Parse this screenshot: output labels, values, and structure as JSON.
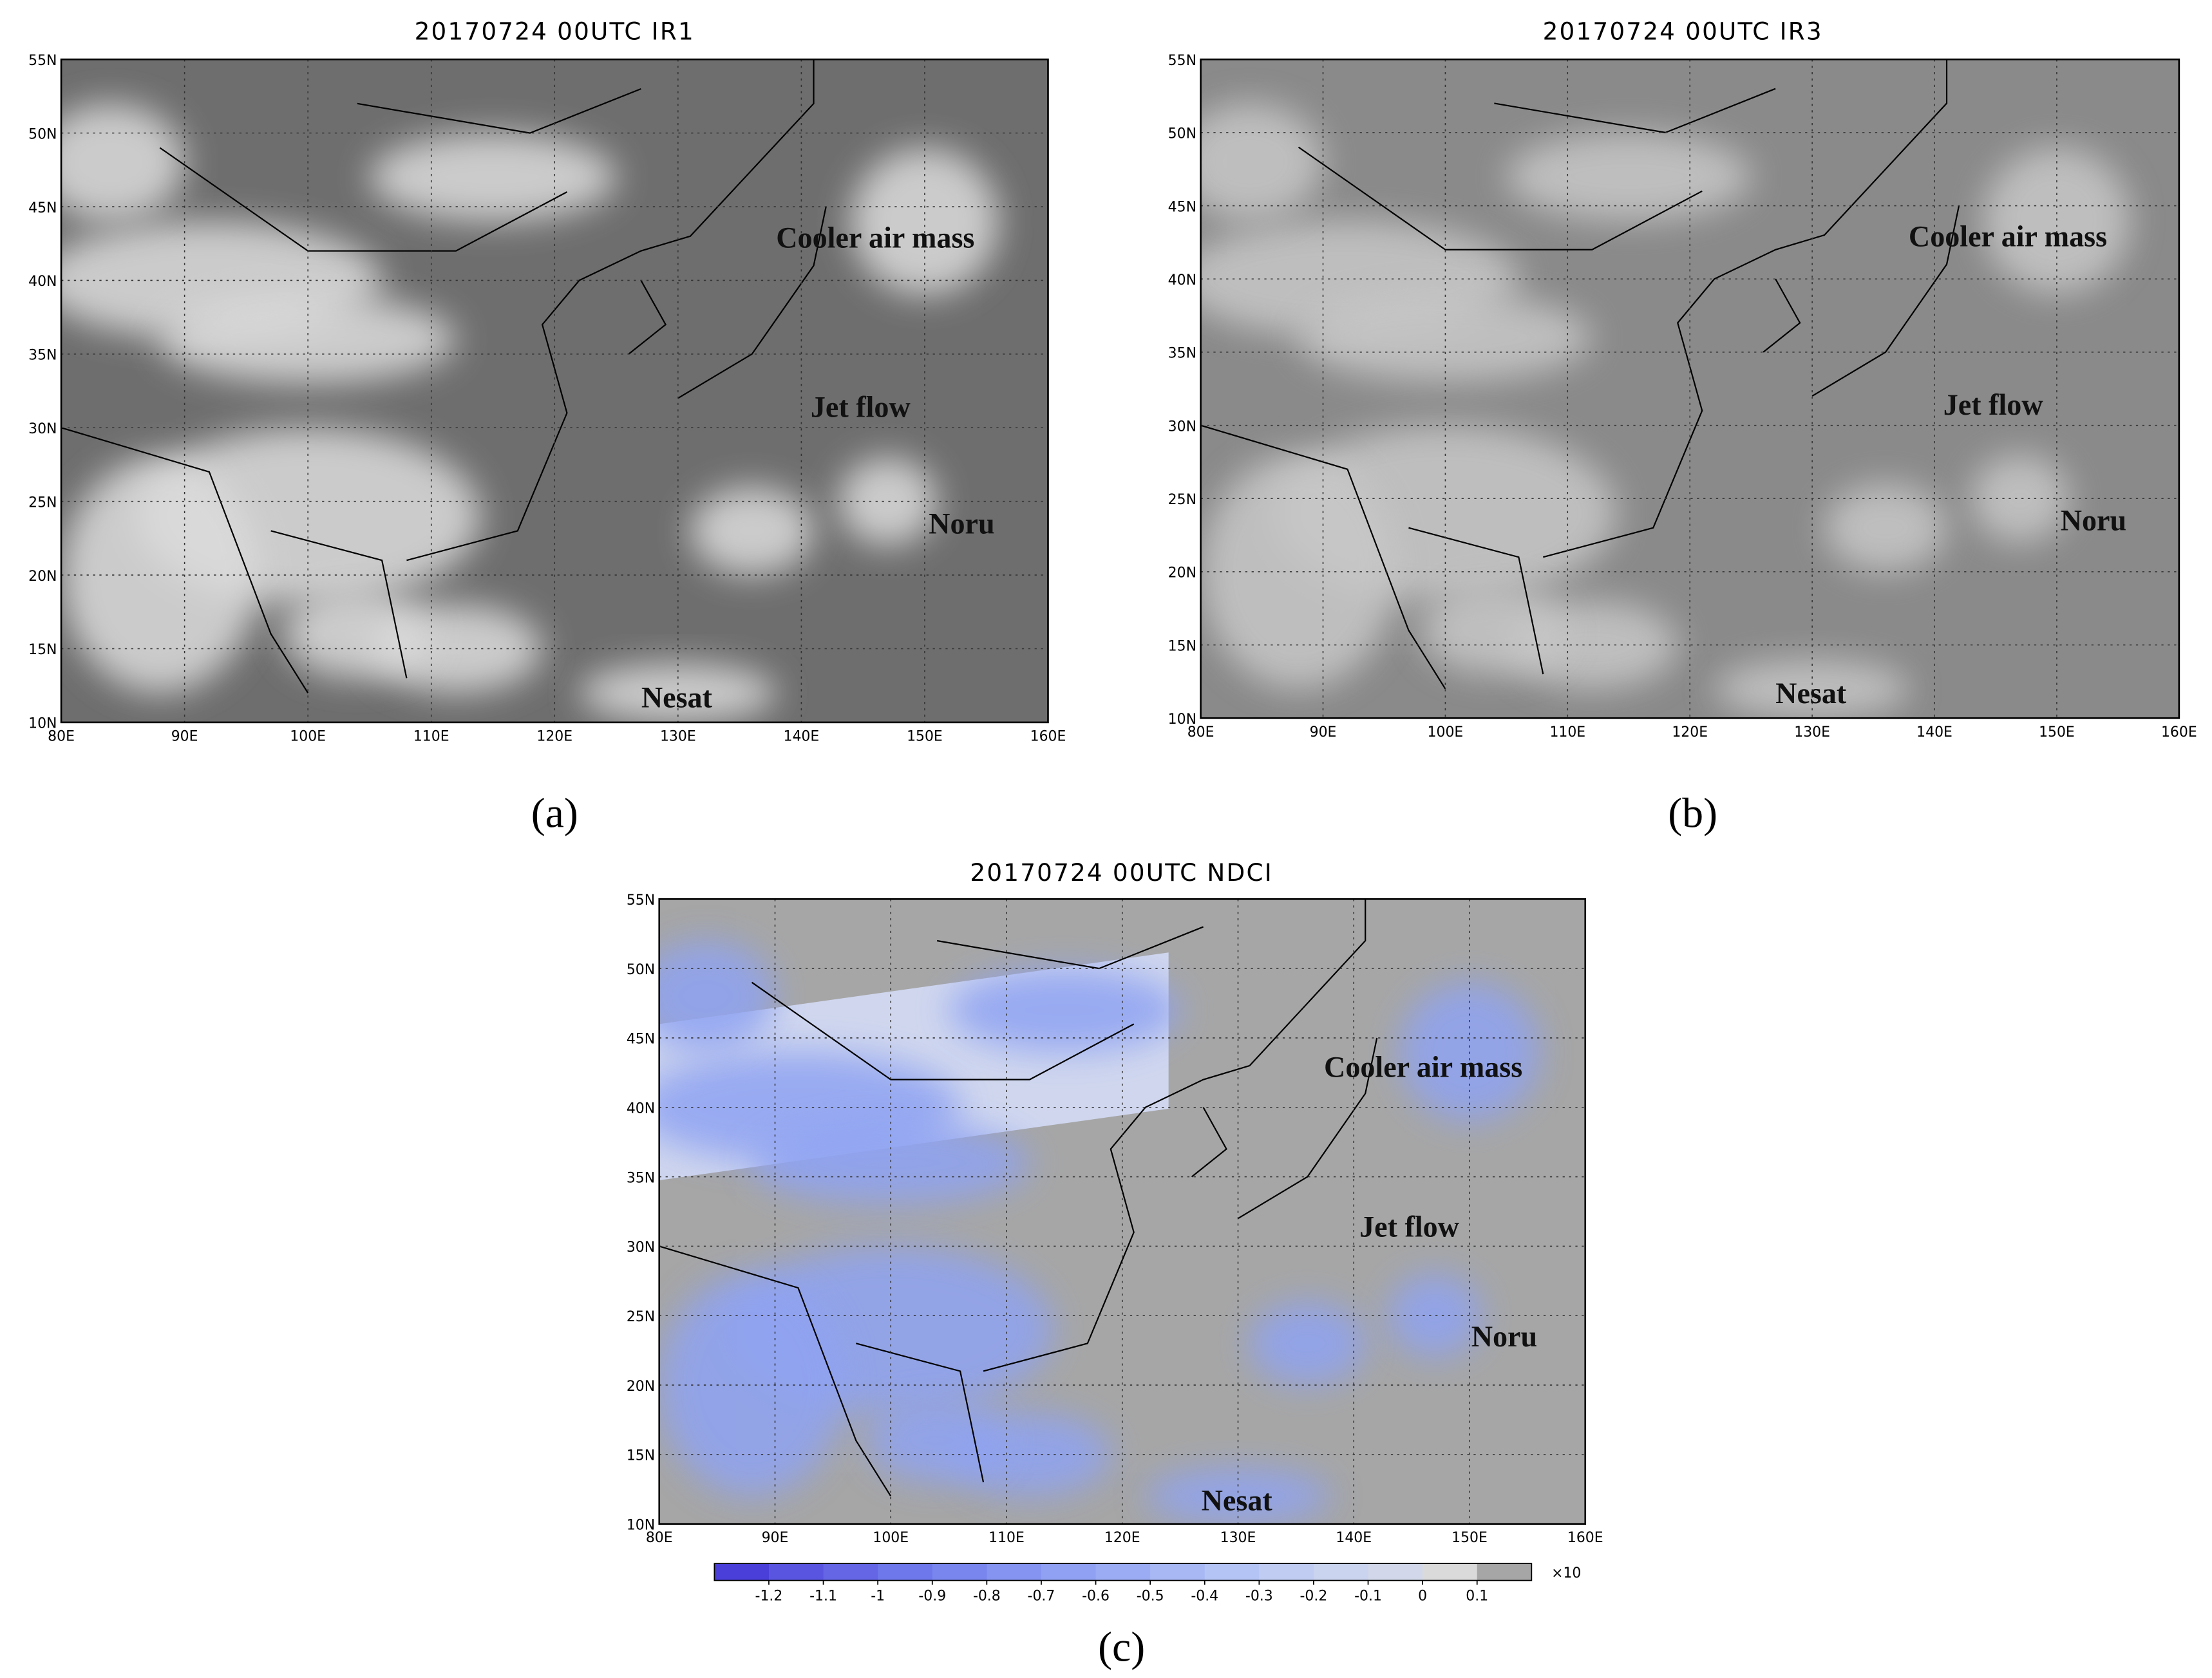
{
  "panels": [
    {
      "title": "20170724 00UTC IR1",
      "label": "(a)",
      "annotations": [
        "Cooler air mass",
        "Jet flow",
        "Noru",
        "Nesat"
      ]
    },
    {
      "title": "20170724 00UTC IR3",
      "label": "(b)",
      "annotations": [
        "Cooler air mass",
        "Jet flow",
        "Noru",
        "Nesat"
      ]
    },
    {
      "title": "20170724 00UTC NDCI",
      "label": "(c)",
      "annotations": [
        "Cooler air mass",
        "Jet flow",
        "Noru",
        "Nesat"
      ]
    }
  ],
  "lat_ticks": [
    "55N",
    "50N",
    "45N",
    "40N",
    "35N",
    "30N",
    "25N",
    "20N",
    "15N",
    "10N"
  ],
  "lon_ticks": [
    "80E",
    "90E",
    "100E",
    "110E",
    "120E",
    "130E",
    "140E",
    "150E",
    "160E"
  ],
  "colorbar": {
    "ticks": [
      -1.2,
      -1.1,
      -1,
      -0.9,
      -0.8,
      -0.7,
      -0.6,
      -0.5,
      -0.4,
      -0.3,
      -0.2,
      -0.1,
      0,
      0.1
    ],
    "colors": [
      "#4a3fd8",
      "#5a55e0",
      "#6466e6",
      "#6e78ea",
      "#7886ee",
      "#8494f0",
      "#90a0f2",
      "#9cacf4",
      "#a8b8f4",
      "#b4c4f4",
      "#c0ccf2",
      "#cad4ee",
      "#d2d8ea",
      "#dadada",
      "#a6a6a6"
    ],
    "multiplier": "×10"
  }
}
